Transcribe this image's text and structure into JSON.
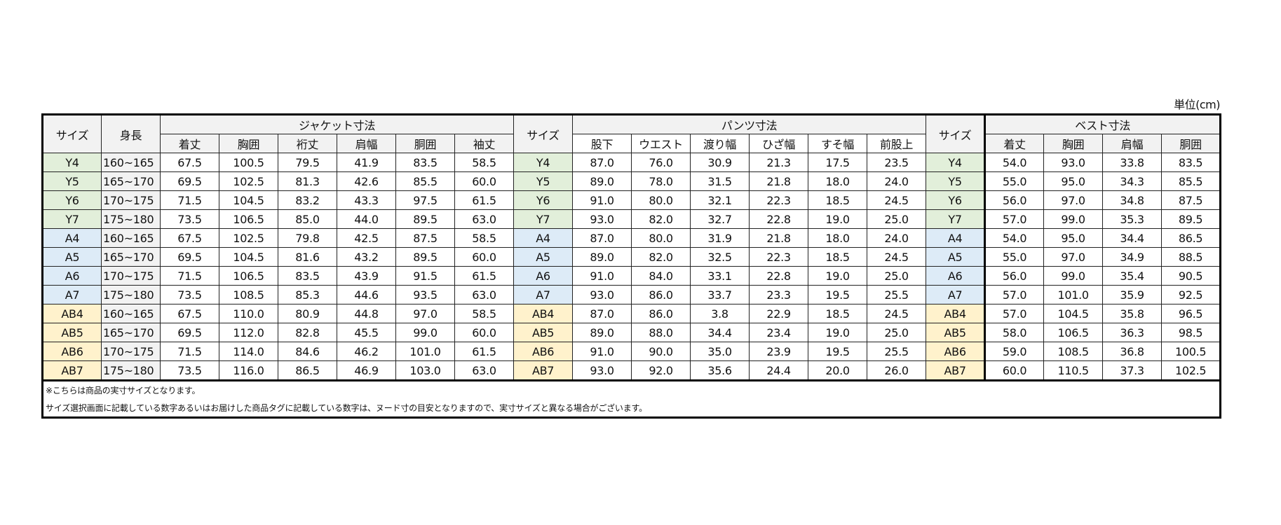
{
  "unit_label": "単位(cm)",
  "headers": {
    "size": "サイズ",
    "height": "身長",
    "jacket_title": "ジャケット寸法",
    "jacket_cols": [
      "着丈",
      "胸囲",
      "裄丈",
      "肩幅",
      "胴囲",
      "袖丈"
    ],
    "pants_title": "パンツ寸法",
    "pants_cols": [
      "股下",
      "ウエスト",
      "渡り幅",
      "ひざ幅",
      "すそ幅",
      "前股上"
    ],
    "vest_title": "ベスト寸法",
    "vest_cols": [
      "着丈",
      "胸囲",
      "肩幅",
      "胴囲"
    ]
  },
  "group_colors": {
    "Y": "#e2efda",
    "A": "#ddebf7",
    "AB": "#fff2cc"
  },
  "rows": [
    {
      "group": "Y",
      "size": "Y4",
      "height": "160~165",
      "jacket": [
        "67.5",
        "100.5",
        "79.5",
        "41.9",
        "83.5",
        "58.5"
      ],
      "pants": [
        "87.0",
        "76.0",
        "30.9",
        "21.3",
        "17.5",
        "23.5"
      ],
      "vest": [
        "54.0",
        "93.0",
        "33.8",
        "83.5"
      ]
    },
    {
      "group": "Y",
      "size": "Y5",
      "height": "165~170",
      "jacket": [
        "69.5",
        "102.5",
        "81.3",
        "42.6",
        "85.5",
        "60.0"
      ],
      "pants": [
        "89.0",
        "78.0",
        "31.5",
        "21.8",
        "18.0",
        "24.0"
      ],
      "vest": [
        "55.0",
        "95.0",
        "34.3",
        "85.5"
      ]
    },
    {
      "group": "Y",
      "size": "Y6",
      "height": "170~175",
      "jacket": [
        "71.5",
        "104.5",
        "83.2",
        "43.3",
        "97.5",
        "61.5"
      ],
      "pants": [
        "91.0",
        "80.0",
        "32.1",
        "22.3",
        "18.5",
        "24.5"
      ],
      "vest": [
        "56.0",
        "97.0",
        "34.8",
        "87.5"
      ]
    },
    {
      "group": "Y",
      "size": "Y7",
      "height": "175~180",
      "jacket": [
        "73.5",
        "106.5",
        "85.0",
        "44.0",
        "89.5",
        "63.0"
      ],
      "pants": [
        "93.0",
        "82.0",
        "32.7",
        "22.8",
        "19.0",
        "25.0"
      ],
      "vest": [
        "57.0",
        "99.0",
        "35.3",
        "89.5"
      ]
    },
    {
      "group": "A",
      "size": "A4",
      "height": "160~165",
      "jacket": [
        "67.5",
        "102.5",
        "79.8",
        "42.5",
        "87.5",
        "58.5"
      ],
      "pants": [
        "87.0",
        "80.0",
        "31.9",
        "21.8",
        "18.0",
        "24.0"
      ],
      "vest": [
        "54.0",
        "95.0",
        "34.4",
        "86.5"
      ]
    },
    {
      "group": "A",
      "size": "A5",
      "height": "165~170",
      "jacket": [
        "69.5",
        "104.5",
        "81.6",
        "43.2",
        "89.5",
        "60.0"
      ],
      "pants": [
        "89.0",
        "82.0",
        "32.5",
        "22.3",
        "18.5",
        "24.5"
      ],
      "vest": [
        "55.0",
        "97.0",
        "34.9",
        "88.5"
      ]
    },
    {
      "group": "A",
      "size": "A6",
      "height": "170~175",
      "jacket": [
        "71.5",
        "106.5",
        "83.5",
        "43.9",
        "91.5",
        "61.5"
      ],
      "pants": [
        "91.0",
        "84.0",
        "33.1",
        "22.8",
        "19.0",
        "25.0"
      ],
      "vest": [
        "56.0",
        "99.0",
        "35.4",
        "90.5"
      ]
    },
    {
      "group": "A",
      "size": "A7",
      "height": "175~180",
      "jacket": [
        "73.5",
        "108.5",
        "85.3",
        "44.6",
        "93.5",
        "63.0"
      ],
      "pants": [
        "93.0",
        "86.0",
        "33.7",
        "23.3",
        "19.5",
        "25.5"
      ],
      "vest": [
        "57.0",
        "101.0",
        "35.9",
        "92.5"
      ]
    },
    {
      "group": "AB",
      "size": "AB4",
      "height": "160~165",
      "jacket": [
        "67.5",
        "110.0",
        "80.9",
        "44.8",
        "97.0",
        "58.5"
      ],
      "pants": [
        "87.0",
        "86.0",
        "3.8",
        "22.9",
        "18.5",
        "24.5"
      ],
      "vest": [
        "57.0",
        "104.5",
        "35.8",
        "96.5"
      ]
    },
    {
      "group": "AB",
      "size": "AB5",
      "height": "165~170",
      "jacket": [
        "69.5",
        "112.0",
        "82.8",
        "45.5",
        "99.0",
        "60.0"
      ],
      "pants": [
        "89.0",
        "88.0",
        "34.4",
        "23.4",
        "19.0",
        "25.0"
      ],
      "vest": [
        "58.0",
        "106.5",
        "36.3",
        "98.5"
      ]
    },
    {
      "group": "AB",
      "size": "AB6",
      "height": "170~175",
      "jacket": [
        "71.5",
        "114.0",
        "84.6",
        "46.2",
        "101.0",
        "61.5"
      ],
      "pants": [
        "91.0",
        "90.0",
        "35.0",
        "23.9",
        "19.5",
        "25.5"
      ],
      "vest": [
        "59.0",
        "108.5",
        "36.8",
        "100.5"
      ]
    },
    {
      "group": "AB",
      "size": "AB7",
      "height": "175~180",
      "jacket": [
        "73.5",
        "116.0",
        "86.5",
        "46.9",
        "103.0",
        "63.0"
      ],
      "pants": [
        "93.0",
        "92.0",
        "35.6",
        "24.4",
        "20.0",
        "26.0"
      ],
      "vest": [
        "60.0",
        "110.5",
        "37.3",
        "102.5"
      ]
    }
  ],
  "notes": [
    "※こちらは商品の実寸サイズとなります。",
    "サイズ選択画面に記載している数字あるいはお届けした商品タグに記載している数字は、ヌード寸の目安となりますので、実寸サイズと異なる場合がございます。"
  ]
}
